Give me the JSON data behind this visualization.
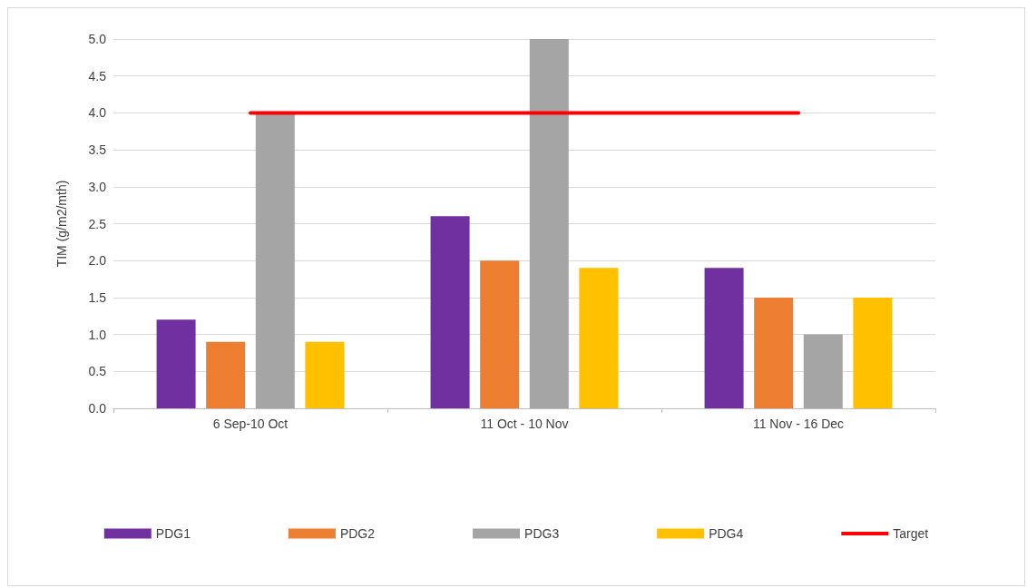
{
  "chart_data": {
    "type": "bar",
    "ylabel": "TIM (g/m2/mth)",
    "categories": [
      "6 Sep-10 Oct",
      "11 Oct - 10 Nov",
      "11 Nov - 16 Dec"
    ],
    "series": [
      {
        "name": "PDG1",
        "color": "#7030a0",
        "values": [
          1.2,
          2.6,
          1.9
        ]
      },
      {
        "name": "PDG2",
        "color": "#ed7d31",
        "values": [
          0.9,
          2.0,
          1.5
        ]
      },
      {
        "name": "PDG3",
        "color": "#a5a5a5",
        "values": [
          4.0,
          5.0,
          1.0
        ]
      },
      {
        "name": "PDG4",
        "color": "#ffc000",
        "values": [
          0.9,
          1.9,
          1.5
        ]
      },
      {
        "name": "Target",
        "type": "line",
        "color": "#ff0000",
        "values": [
          4.0,
          4.0,
          4.0
        ],
        "marker": "none",
        "line_style": "solid"
      }
    ],
    "ylim": [
      0,
      5
    ],
    "yticks": [
      {
        "value": 0,
        "label": "0.0"
      },
      {
        "value": 0.5,
        "label": "0.5"
      },
      {
        "value": 1,
        "label": "1.0"
      },
      {
        "value": 1.5,
        "label": "1.5"
      },
      {
        "value": 2,
        "label": "2.0"
      },
      {
        "value": 2.5,
        "label": "2.5"
      },
      {
        "value": 3,
        "label": "3.0"
      },
      {
        "value": 3.5,
        "label": "3.5"
      },
      {
        "value": 4,
        "label": "4.0"
      },
      {
        "value": 4.5,
        "label": "4.5"
      },
      {
        "value": 5,
        "label": "5.0"
      }
    ],
    "grid": "y",
    "legend": "bottom"
  }
}
